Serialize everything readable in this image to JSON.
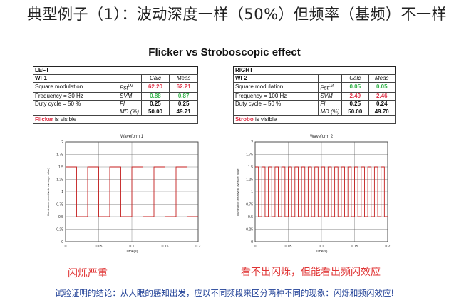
{
  "slide_title": "典型例子（1）：波动深度一样（50%）但频率（基频）不一样",
  "subtitle": "Flicker vs Stroboscopic effect",
  "left_table": {
    "section": "LEFT",
    "wf": "WF1",
    "col_calc": "Calc",
    "col_meas": "Meas",
    "rows": [
      {
        "label": "Square modulation",
        "sym": "Pst",
        "sym_sup": "LM",
        "calc": "62.20",
        "meas": "62.21"
      },
      {
        "label": "Frequency = 30 Hz",
        "sym": "SVM",
        "sym_sup": "",
        "calc": "0.88",
        "meas": "0.87"
      },
      {
        "label": "Duty cycle = 50 %",
        "sym": "FI",
        "sym_sup": "",
        "calc": "0.25",
        "meas": "0.25"
      },
      {
        "label": "",
        "sym": "MD (%)",
        "sym_sup": "",
        "calc": "50.00",
        "meas": "49.71"
      }
    ],
    "note_strong": "Flicker",
    "note_rest": " is visible"
  },
  "right_table": {
    "section": "RIGHT",
    "wf": "WF2",
    "col_calc": "Calc",
    "col_meas": "Meas",
    "rows": [
      {
        "label": "Square modulation",
        "sym": "Pst",
        "sym_sup": "LM",
        "calc": "0.05",
        "meas": "0.05"
      },
      {
        "label": "Frequency = 100 Hz",
        "sym": "SVM",
        "sym_sup": "",
        "calc": "2.49",
        "meas": "2.46"
      },
      {
        "label": "Duty cycle = 50 %",
        "sym": "FI",
        "sym_sup": "",
        "calc": "0.25",
        "meas": "0.24"
      },
      {
        "label": "",
        "sym": "MD (%)",
        "sym_sup": "",
        "calc": "50.00",
        "meas": "49.70"
      }
    ],
    "note_strong": "Strobo",
    "note_rest": " is visible"
  },
  "colors": {
    "red": "#e0354a",
    "green": "#34b24a",
    "wave": "#c41e1e",
    "caption": "#e03535",
    "conclusion": "#1f3f96"
  },
  "chart_data": [
    {
      "type": "line",
      "title": "Waveform 1",
      "xlabel": "Time(s)",
      "ylabel": "Illuminance (relative to average value)",
      "xlim": [
        0,
        0.2
      ],
      "ylim": [
        0,
        2
      ],
      "xticks": [
        "0",
        "0.05",
        "0.1",
        "0.15",
        "0.2"
      ],
      "yticks": [
        "0",
        "0.25",
        "0.5",
        "0.75",
        "1",
        "1.25",
        "1.5",
        "1.75",
        "2"
      ],
      "grid": true,
      "waveform": {
        "shape": "square",
        "frequency_hz": 30,
        "duty_cycle": 0.5,
        "high": 1.5,
        "low": 0.5
      }
    },
    {
      "type": "line",
      "title": "Waveform 2",
      "xlabel": "Time(s)",
      "ylabel": "Illuminance (relative to average value)",
      "xlim": [
        0,
        0.2
      ],
      "ylim": [
        0,
        2
      ],
      "xticks": [
        "0",
        "0.05",
        "0.1",
        "0.15",
        "0.2"
      ],
      "yticks": [
        "0",
        "0.25",
        "0.5",
        "0.75",
        "1",
        "1.25",
        "1.5",
        "1.75",
        "2"
      ],
      "grid": true,
      "waveform": {
        "shape": "square",
        "frequency_hz": 100,
        "duty_cycle": 0.5,
        "high": 1.5,
        "low": 0.5
      }
    }
  ],
  "captions": {
    "left": "闪烁严重",
    "right": "看不出闪烁，但能看出频闪效应"
  },
  "conclusion": "试验证明的结论：从人眼的感知出发，应以不同频段来区分两种不同的现象：闪烁和频闪效应!"
}
